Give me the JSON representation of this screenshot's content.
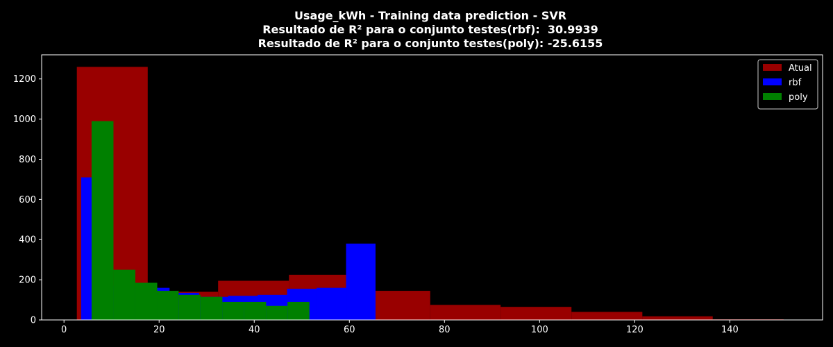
{
  "chart_data": {
    "type": "histogram",
    "title": "Usage_kWh - Training data prediction - SVR",
    "subtitle_lines": [
      "Resultado de R² para o conjunto testes(rbf):  30.9939",
      "Resultado de R² para o conjunto testes(poly): -25.6155"
    ],
    "xlabel": "",
    "ylabel": "",
    "xlim": [
      -4.7,
      159.5
    ],
    "ylim": [
      0,
      1320
    ],
    "xticks": [
      0,
      20,
      40,
      60,
      80,
      100,
      120,
      140
    ],
    "yticks": [
      0,
      200,
      400,
      600,
      800,
      1000,
      1200
    ],
    "grid": false,
    "legend_position": "top-right",
    "series": [
      {
        "name": "Atual",
        "color": "#990000",
        "bins": [
          {
            "x0": 2.7,
            "x1": 17.6,
            "value": 1260
          },
          {
            "x0": 17.6,
            "x1": 32.4,
            "value": 140
          },
          {
            "x0": 32.4,
            "x1": 47.3,
            "value": 195
          },
          {
            "x0": 47.3,
            "x1": 62.1,
            "value": 225
          },
          {
            "x0": 62.1,
            "x1": 77.0,
            "value": 145
          },
          {
            "x0": 77.0,
            "x1": 91.8,
            "value": 75
          },
          {
            "x0": 91.8,
            "x1": 106.7,
            "value": 65
          },
          {
            "x0": 106.7,
            "x1": 121.6,
            "value": 40
          },
          {
            "x0": 121.6,
            "x1": 136.4,
            "value": 18
          },
          {
            "x0": 136.4,
            "x1": 151.3,
            "value": 3
          }
        ]
      },
      {
        "name": "rbf",
        "color": "#0000ff",
        "bins": [
          {
            "x0": 3.6,
            "x1": 9.8,
            "value": 710
          },
          {
            "x0": 9.8,
            "x1": 16.0,
            "value": 170
          },
          {
            "x0": 16.0,
            "x1": 22.2,
            "value": 160
          },
          {
            "x0": 22.2,
            "x1": 28.4,
            "value": 135
          },
          {
            "x0": 28.4,
            "x1": 34.5,
            "value": 115
          },
          {
            "x0": 34.5,
            "x1": 40.7,
            "value": 120
          },
          {
            "x0": 40.7,
            "x1": 46.9,
            "value": 125
          },
          {
            "x0": 46.9,
            "x1": 53.1,
            "value": 155
          },
          {
            "x0": 53.1,
            "x1": 59.3,
            "value": 160
          },
          {
            "x0": 59.3,
            "x1": 65.5,
            "value": 380
          }
        ]
      },
      {
        "name": "poly",
        "color": "#008000",
        "bins": [
          {
            "x0": 5.8,
            "x1": 10.4,
            "value": 990
          },
          {
            "x0": 10.4,
            "x1": 15.0,
            "value": 250
          },
          {
            "x0": 15.0,
            "x1": 19.6,
            "value": 185
          },
          {
            "x0": 19.6,
            "x1": 24.1,
            "value": 145
          },
          {
            "x0": 24.1,
            "x1": 28.7,
            "value": 125
          },
          {
            "x0": 28.7,
            "x1": 33.3,
            "value": 115
          },
          {
            "x0": 33.3,
            "x1": 37.9,
            "value": 90
          },
          {
            "x0": 37.9,
            "x1": 42.5,
            "value": 90
          },
          {
            "x0": 42.5,
            "x1": 47.0,
            "value": 70
          },
          {
            "x0": 47.0,
            "x1": 51.6,
            "value": 90
          }
        ]
      }
    ]
  }
}
